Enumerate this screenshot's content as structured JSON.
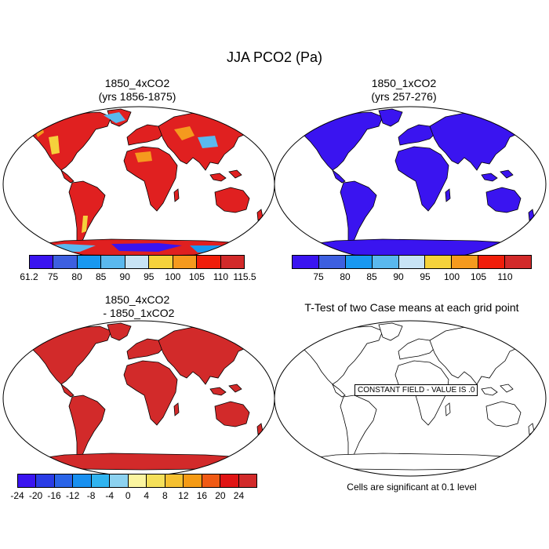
{
  "title": "JJA PCO2 (Pa)",
  "panels": [
    {
      "title": "1850_4xCO2\n(yrs 1856-1875)"
    },
    {
      "title": "1850_1xCO2\n(yrs 257-276)"
    },
    {
      "title": "1850_4xCO2\n - 1850_1xCO2"
    },
    {
      "title": "T-Test of two Case means at each grid point",
      "constant_field": "CONSTANT FIELD - VALUE IS .0",
      "note": "Cells are significant at 0.1 level"
    }
  ],
  "colorbars": [
    {
      "colors": [
        "#3a14f0",
        "#3d5fe0",
        "#1898f0",
        "#5ab8ee",
        "#c7e3f5",
        "#f5d23c",
        "#f59a1e",
        "#f01e0a",
        "#d22a2a"
      ],
      "labels": [
        "61.2",
        "75",
        "80",
        "85",
        "90",
        "95",
        "100",
        "105",
        "110",
        "115.5"
      ]
    },
    {
      "colors": [
        "#3a14f0",
        "#3d5fe0",
        "#1898f0",
        "#5ab8ee",
        "#c7e3f5",
        "#f5d23c",
        "#f59a1e",
        "#f01e0a",
        "#d22a2a"
      ],
      "labels": [
        "",
        "75",
        "80",
        "85",
        "90",
        "95",
        "100",
        "105",
        "110",
        ""
      ]
    },
    {
      "colors": [
        "#3a14f0",
        "#2a3ce6",
        "#2a64e8",
        "#1890f0",
        "#30b4f0",
        "#8cd2f0",
        "#fbf5a0",
        "#f5e05a",
        "#f5c030",
        "#f59a14",
        "#f05a14",
        "#e01414",
        "#d22a2a"
      ],
      "labels": [
        "",
        "-24",
        "-20",
        "-16",
        "-12",
        "-8",
        "-4",
        "0",
        "4",
        "8",
        "12",
        "16",
        "20",
        "24",
        ""
      ]
    }
  ],
  "colors": {
    "warm_fill": "#d22a2a",
    "cool_fill": "#3a14f0"
  }
}
